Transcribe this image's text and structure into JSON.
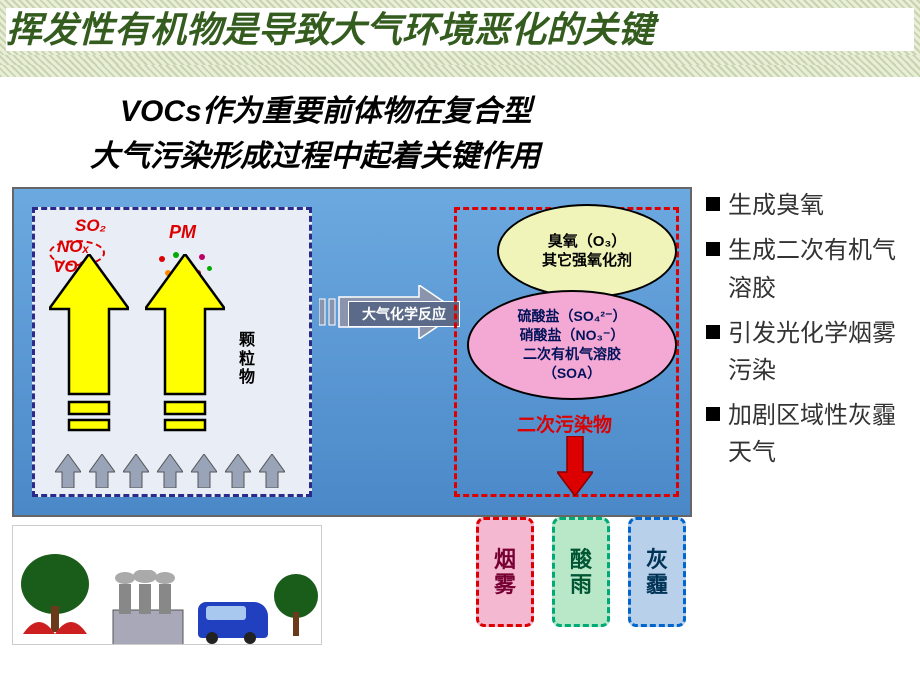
{
  "title": "挥发性有机物是导致大气环境恶化的关键",
  "subtitle_l1": "VOCs作为重要前体物在复合型",
  "subtitle_l2": "大气污染形成过程中起着关键作用",
  "diagram": {
    "bg_gradient": [
      "#6ca9e0",
      "#4a88c8"
    ],
    "left_box_bg": "#e8edf6",
    "left_box_border": "#2a2a8a",
    "chem_labels": [
      "SO₂",
      "NOₓ",
      "VOCs"
    ],
    "pm_label": "PM",
    "particle_label": "颗粒物",
    "arrow_fill": "#ffff00",
    "arrow_stroke": "#000",
    "pm_dot_colors": [
      "#d00",
      "#0a0",
      "#06c",
      "#b06",
      "#f80",
      "#06c",
      "#d00",
      "#0a0"
    ],
    "reaction_label": "大气化学反应",
    "reaction_arrow_fill": "#b0b6c4",
    "ozone_lines": [
      "臭氧（O₃）",
      "其它强氧化剂"
    ],
    "ozone_bg": "#f0f4b8",
    "sulfate_lines": [
      "硫酸盐（SO₄²⁻）",
      "硝酸盐（NO₃⁻）",
      "二次有机气溶胶",
      "（SOA）"
    ],
    "sulfate_bg": "#f4a8d4",
    "sec_label": "二次污染物",
    "right_border": "#d00"
  },
  "outputs": [
    {
      "label": "烟雾",
      "border": "#d00",
      "bg": "#f4b8d0",
      "color": "#703"
    },
    {
      "label": "酸雨",
      "border": "#0a7",
      "bg": "#b8e8c8",
      "color": "#053"
    },
    {
      "label": "灰霾",
      "border": "#06c",
      "bg": "#b8d0ea",
      "color": "#035"
    }
  ],
  "bullets": [
    "生成臭氧",
    "生成二次有机气溶胶",
    "引发光化学烟雾污染",
    "加剧区域性灰霾天气"
  ],
  "src_img": {
    "tree_fill": "#1a5c1a",
    "tree_fire": "#cc2020",
    "factory_fill": "#a8a8b8",
    "smoke": "#888"
  }
}
